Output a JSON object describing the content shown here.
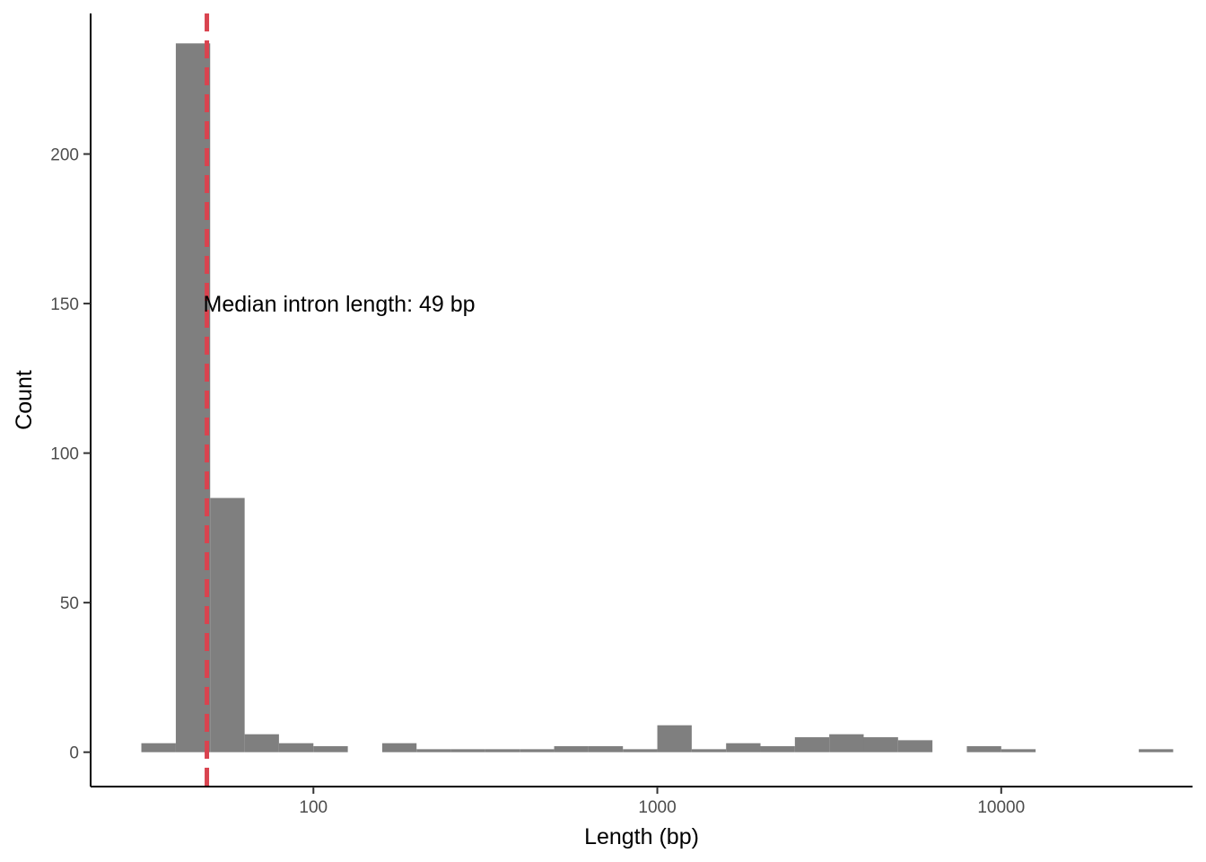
{
  "chart_data": {
    "type": "bar",
    "title": "",
    "xlabel": "Length (bp)",
    "ylabel": "Count",
    "x_scale": "log10",
    "xlim": [
      22.5,
      36000
    ],
    "ylim": [
      -11.5,
      247
    ],
    "x_ticks": [
      100,
      1000,
      10000
    ],
    "x_tick_labels": [
      "100",
      "1000",
      "10000"
    ],
    "y_ticks": [
      0,
      50,
      100,
      150,
      200
    ],
    "y_tick_labels": [
      "0",
      "50",
      "100",
      "150",
      "200"
    ],
    "grid": false,
    "legend": "none",
    "bar_color": "#7f7f7f",
    "bins": [
      {
        "x0": 31.6,
        "x1": 39.8,
        "count": 3
      },
      {
        "x0": 39.8,
        "x1": 50.1,
        "count": 237
      },
      {
        "x0": 50.1,
        "x1": 63.1,
        "count": 85
      },
      {
        "x0": 63.1,
        "x1": 79.4,
        "count": 6
      },
      {
        "x0": 79.4,
        "x1": 100.0,
        "count": 3
      },
      {
        "x0": 100.0,
        "x1": 125.9,
        "count": 2
      },
      {
        "x0": 158.5,
        "x1": 199.5,
        "count": 3
      },
      {
        "x0": 199.5,
        "x1": 251.2,
        "count": 1
      },
      {
        "x0": 251.2,
        "x1": 316.2,
        "count": 1
      },
      {
        "x0": 316.2,
        "x1": 398.1,
        "count": 1
      },
      {
        "x0": 398.1,
        "x1": 501.2,
        "count": 1
      },
      {
        "x0": 501.2,
        "x1": 631.0,
        "count": 2
      },
      {
        "x0": 631.0,
        "x1": 794.3,
        "count": 2
      },
      {
        "x0": 794.3,
        "x1": 1000.0,
        "count": 1
      },
      {
        "x0": 1000.0,
        "x1": 1258.9,
        "count": 9
      },
      {
        "x0": 1258.9,
        "x1": 1584.9,
        "count": 1
      },
      {
        "x0": 1584.9,
        "x1": 1995.3,
        "count": 3
      },
      {
        "x0": 1995.3,
        "x1": 2511.9,
        "count": 2
      },
      {
        "x0": 2511.9,
        "x1": 3162.3,
        "count": 5
      },
      {
        "x0": 3162.3,
        "x1": 3981.1,
        "count": 6
      },
      {
        "x0": 3981.1,
        "x1": 5011.9,
        "count": 5
      },
      {
        "x0": 5011.9,
        "x1": 6309.6,
        "count": 4
      },
      {
        "x0": 7943.3,
        "x1": 10000.0,
        "count": 2
      },
      {
        "x0": 10000.0,
        "x1": 12589.3,
        "count": 1
      },
      {
        "x0": 25118.9,
        "x1": 31622.8,
        "count": 1
      }
    ],
    "median_line": {
      "x": 49,
      "color": "#d9434f",
      "style": "dashed"
    },
    "annotation": {
      "text": "Median intron length: 49 bp",
      "x": 49,
      "y": 150
    }
  }
}
